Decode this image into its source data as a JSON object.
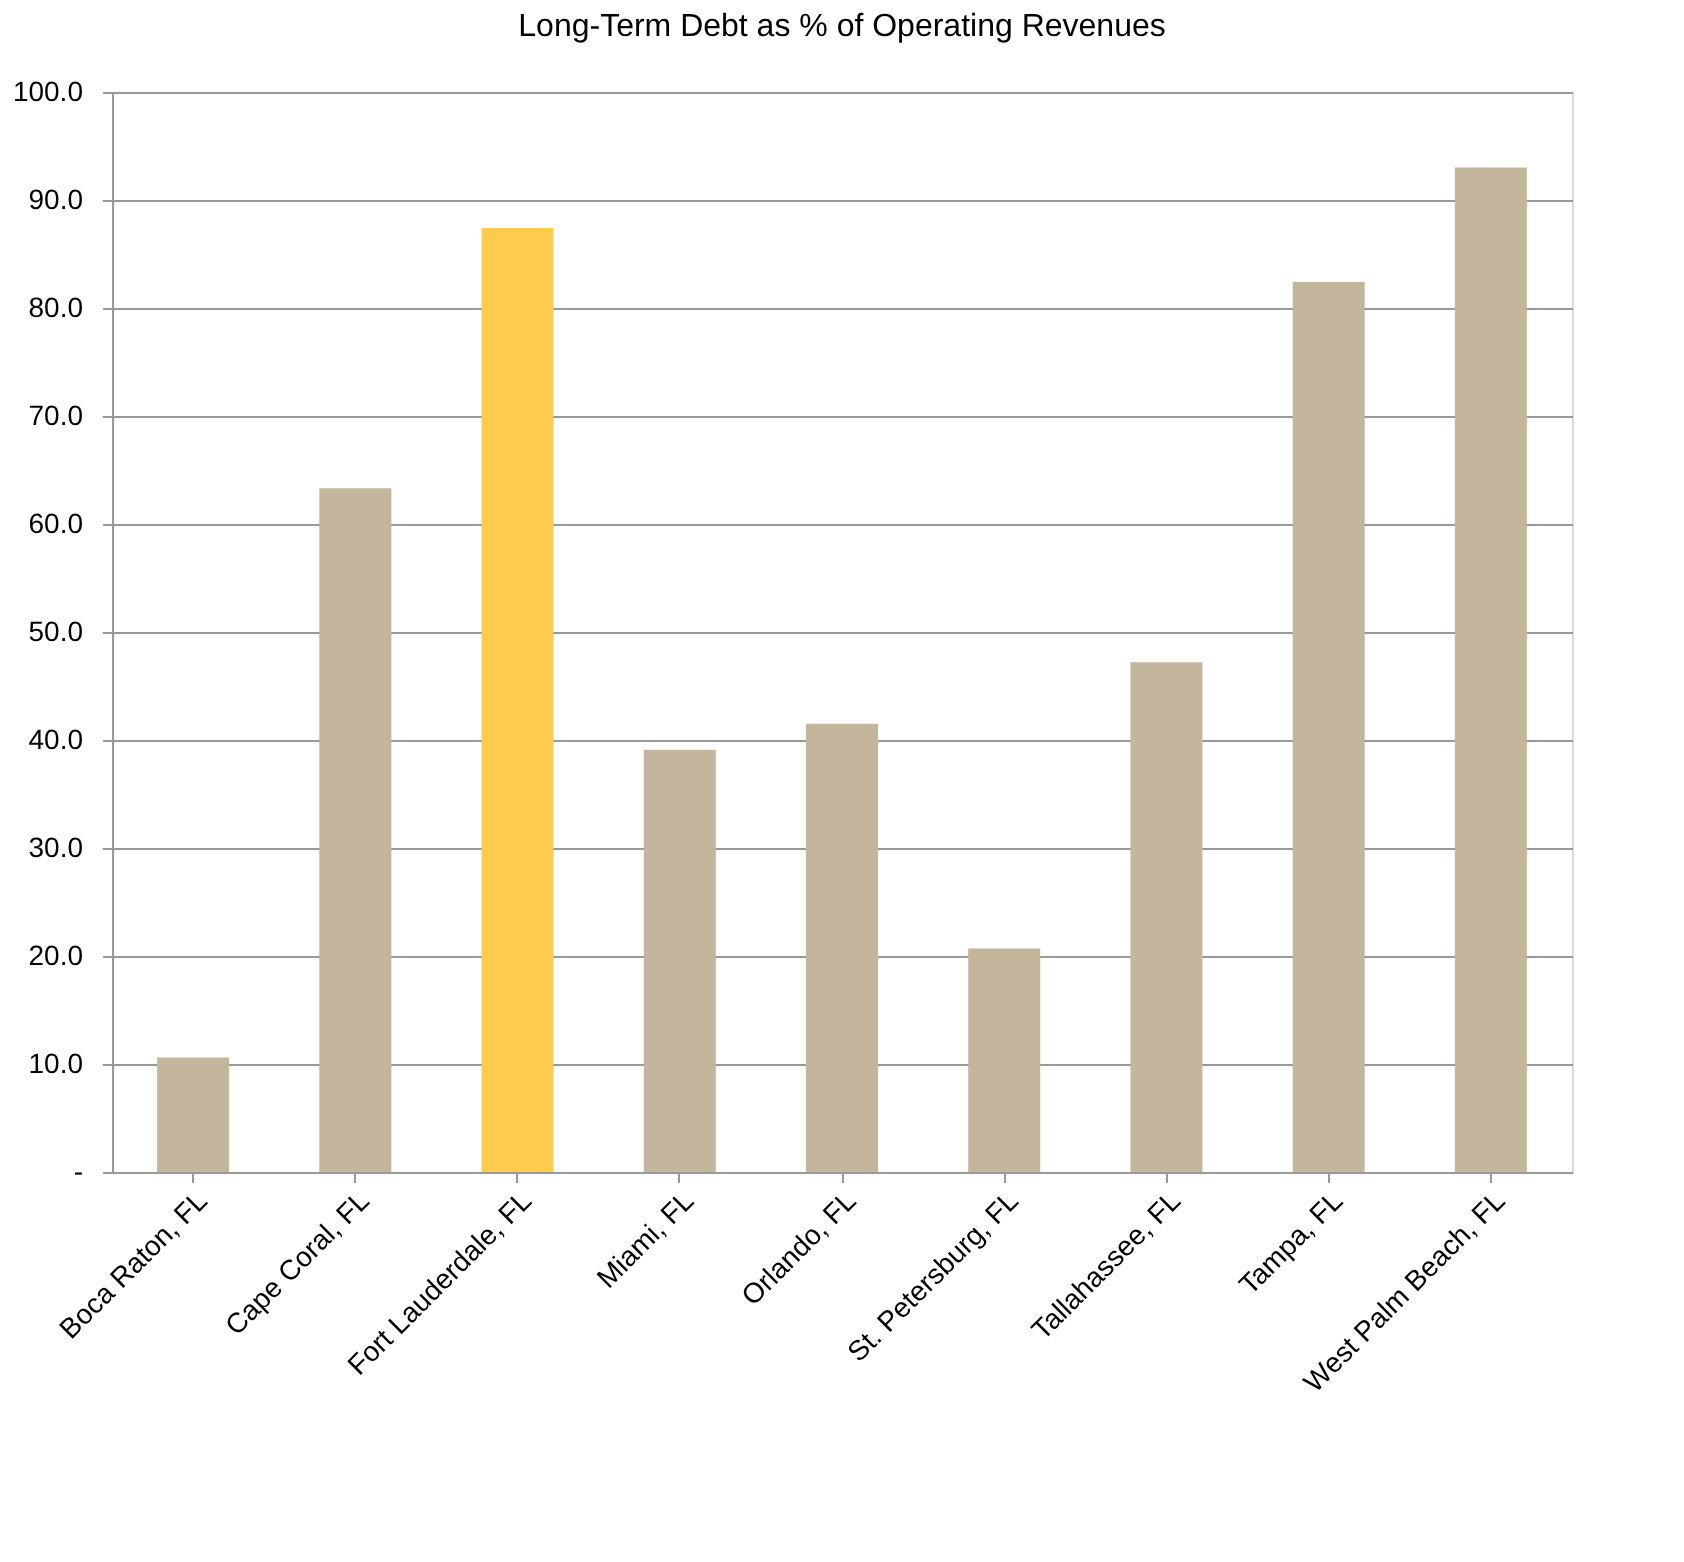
{
  "chart_data": {
    "type": "bar",
    "title": "Long-Term Debt as % of Operating Revenues",
    "categories": [
      "Boca Raton, FL",
      "Cape Coral, FL",
      "Fort Lauderdale, FL",
      "Miami, FL",
      "Orlando, FL",
      "St. Petersburg, FL",
      "Tallahassee, FL",
      "Tampa, FL",
      "West Palm Beach, FL"
    ],
    "values": [
      10.6,
      63.3,
      87.4,
      39.1,
      41.5,
      20.7,
      47.2,
      82.4,
      93.0
    ],
    "colors": [
      "#c4b59d",
      "#c4b59d",
      "#fecb4c",
      "#c4b59d",
      "#c4b59d",
      "#c4b59d",
      "#c4b59d",
      "#c4b59d",
      "#c4b59d"
    ],
    "ylim": [
      0,
      100
    ],
    "yticks": [
      {
        "value": 0,
        "label": "-"
      },
      {
        "value": 10,
        "label": "10.0"
      },
      {
        "value": 20,
        "label": "20.0"
      },
      {
        "value": 30,
        "label": "30.0"
      },
      {
        "value": 40,
        "label": "40.0"
      },
      {
        "value": 50,
        "label": "50.0"
      },
      {
        "value": 60,
        "label": "60.0"
      },
      {
        "value": 70,
        "label": "70.0"
      },
      {
        "value": 80,
        "label": "80.0"
      },
      {
        "value": 90,
        "label": "90.0"
      },
      {
        "value": 100,
        "label": "100.0"
      }
    ],
    "grid": "y"
  }
}
